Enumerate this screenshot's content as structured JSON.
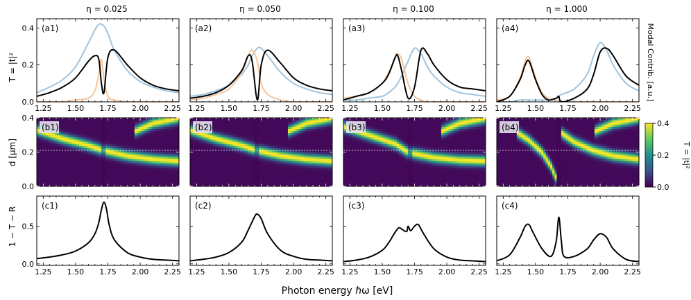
{
  "figure": {
    "xlabel": "Photon energy ℏω [eV]",
    "row_a_ylabel": "T = |t|²",
    "row_a_right_label": "Modal Contrib. [a.u.]",
    "row_b_ylabel": "d [μm]",
    "row_c_ylabel": "1 − T − R",
    "colorbar_label": "T = |t|²",
    "colorbar_ticks": [
      "0.0",
      "0.2",
      "0.4"
    ],
    "eta_titles": [
      "η = 0.025",
      "η = 0.050",
      "η = 0.100",
      "η = 1.000"
    ],
    "colormap": [
      "#440154",
      "#3b528b",
      "#21918c",
      "#5ec962",
      "#fde725"
    ]
  },
  "chart_data": [
    {
      "panel": "(a1)",
      "type": "line",
      "xlim": [
        1.2,
        2.3
      ],
      "ylim": [
        0,
        0.45
      ],
      "xticks": [
        "1.25",
        "1.50",
        "1.75",
        "2.00",
        "2.25"
      ],
      "yticks": [
        "0.0",
        "0.2",
        "0.4"
      ],
      "x": [
        1.2,
        1.3,
        1.4,
        1.5,
        1.6,
        1.65,
        1.68,
        1.7,
        1.72,
        1.75,
        1.8,
        1.9,
        2.0,
        2.1,
        2.2,
        2.3
      ],
      "series": [
        {
          "color": "#9fc4dd",
          "values": [
            0.05,
            0.08,
            0.12,
            0.19,
            0.32,
            0.39,
            0.42,
            0.42,
            0.41,
            0.37,
            0.28,
            0.17,
            0.11,
            0.08,
            0.06,
            0.05
          ]
        },
        {
          "color": "#f7c49a",
          "values": [
            0.0,
            0.0,
            0.0,
            0.01,
            0.02,
            0.06,
            0.15,
            0.23,
            0.12,
            0.03,
            0.01,
            0.0,
            0.0,
            0.0,
            0.0,
            0.0
          ]
        },
        {
          "color": "#000000",
          "values": [
            0.03,
            0.05,
            0.08,
            0.13,
            0.22,
            0.25,
            0.23,
            0.1,
            0.05,
            0.24,
            0.28,
            0.2,
            0.13,
            0.09,
            0.07,
            0.06
          ]
        }
      ]
    },
    {
      "panel": "(a2)",
      "type": "line",
      "xlim": [
        1.2,
        2.3
      ],
      "ylim": [
        0,
        0.45
      ],
      "xticks": [
        "1.25",
        "1.50",
        "1.75",
        "2.00",
        "2.25"
      ],
      "yticks": [],
      "x": [
        1.2,
        1.3,
        1.4,
        1.5,
        1.6,
        1.65,
        1.68,
        1.72,
        1.75,
        1.8,
        1.9,
        2.0,
        2.1,
        2.2,
        2.3
      ],
      "series": [
        {
          "color": "#9fc4dd",
          "values": [
            0.03,
            0.04,
            0.06,
            0.09,
            0.15,
            0.2,
            0.25,
            0.29,
            0.29,
            0.25,
            0.16,
            0.1,
            0.07,
            0.05,
            0.04
          ]
        },
        {
          "color": "#f7c49a",
          "values": [
            0.01,
            0.02,
            0.04,
            0.07,
            0.16,
            0.25,
            0.28,
            0.22,
            0.1,
            0.04,
            0.01,
            0.0,
            0.0,
            0.0,
            0.0
          ]
        },
        {
          "color": "#000000",
          "values": [
            0.02,
            0.03,
            0.05,
            0.09,
            0.17,
            0.25,
            0.22,
            0.01,
            0.2,
            0.28,
            0.21,
            0.13,
            0.09,
            0.07,
            0.06
          ]
        }
      ]
    },
    {
      "panel": "(a3)",
      "type": "line",
      "xlim": [
        1.2,
        2.3
      ],
      "ylim": [
        0,
        0.45
      ],
      "xticks": [
        "1.25",
        "1.50",
        "1.75",
        "2.00",
        "2.25"
      ],
      "yticks": [],
      "x": [
        1.2,
        1.3,
        1.4,
        1.5,
        1.55,
        1.6,
        1.62,
        1.65,
        1.7,
        1.75,
        1.8,
        1.85,
        1.9,
        2.0,
        2.1,
        2.2,
        2.3
      ],
      "series": [
        {
          "color": "#9fc4dd",
          "values": [
            0.01,
            0.01,
            0.02,
            0.03,
            0.05,
            0.08,
            0.1,
            0.14,
            0.22,
            0.29,
            0.26,
            0.19,
            0.14,
            0.08,
            0.05,
            0.04,
            0.03
          ]
        },
        {
          "color": "#f7c49a",
          "values": [
            0.02,
            0.03,
            0.05,
            0.1,
            0.16,
            0.24,
            0.26,
            0.23,
            0.1,
            0.03,
            0.01,
            0.0,
            0.0,
            0.0,
            0.0,
            0.0,
            0.0
          ]
        },
        {
          "color": "#000000",
          "values": [
            0.01,
            0.03,
            0.05,
            0.1,
            0.15,
            0.24,
            0.25,
            0.17,
            0.02,
            0.08,
            0.28,
            0.26,
            0.2,
            0.12,
            0.08,
            0.07,
            0.06
          ]
        }
      ]
    },
    {
      "panel": "(a4)",
      "type": "line",
      "xlim": [
        1.2,
        2.3
      ],
      "ylim": [
        0,
        0.45
      ],
      "xticks": [
        "1.25",
        "1.50",
        "1.75",
        "2.00",
        "2.25"
      ],
      "yticks": [],
      "x": [
        1.2,
        1.3,
        1.38,
        1.42,
        1.45,
        1.5,
        1.55,
        1.6,
        1.66,
        1.68,
        1.7,
        1.8,
        1.9,
        1.95,
        2.0,
        2.05,
        2.1,
        2.2,
        2.3
      ],
      "series": [
        {
          "color": "#9fc4dd",
          "values": [
            0.0,
            0.0,
            0.01,
            0.01,
            0.01,
            0.01,
            0.01,
            0.01,
            0.02,
            0.03,
            0.04,
            0.07,
            0.15,
            0.25,
            0.32,
            0.28,
            0.2,
            0.1,
            0.06
          ]
        },
        {
          "color": "#f7c49a",
          "values": [
            0.01,
            0.03,
            0.13,
            0.22,
            0.24,
            0.13,
            0.05,
            0.02,
            0.01,
            0.0,
            0.0,
            0.0,
            0.0,
            0.0,
            0.0,
            0.0,
            0.0,
            0.0,
            0.0
          ]
        },
        {
          "color": "#000000",
          "values": [
            0.0,
            0.03,
            0.12,
            0.2,
            0.22,
            0.12,
            0.04,
            0.01,
            0.02,
            0.03,
            0.0,
            0.02,
            0.07,
            0.15,
            0.27,
            0.29,
            0.25,
            0.14,
            0.09
          ]
        }
      ]
    },
    {
      "panel": "(b1)",
      "type": "heatmap",
      "xlim": [
        1.2,
        2.3
      ],
      "ylim": [
        0,
        0.4
      ],
      "clim": [
        0,
        0.4
      ],
      "yticks": [
        "0.0",
        "0.2",
        "0.4"
      ],
      "dashed_line_y": 0.21,
      "branches": [
        {
          "x": [
            1.2,
            1.4,
            1.6,
            1.72,
            1.9,
            2.1,
            2.3
          ],
          "d": [
            0.33,
            0.28,
            0.24,
            0.21,
            0.18,
            0.16,
            0.15
          ]
        },
        {
          "x": [
            1.95,
            2.1,
            2.3
          ],
          "d": [
            0.32,
            0.37,
            0.4
          ]
        }
      ],
      "anticrossing_x": 1.72
    },
    {
      "panel": "(b2)",
      "type": "heatmap",
      "xlim": [
        1.2,
        2.3
      ],
      "ylim": [
        0,
        0.4
      ],
      "clim": [
        0,
        0.4
      ],
      "yticks": [],
      "dashed_line_y": 0.21,
      "branches": [
        {
          "x": [
            1.2,
            1.4,
            1.6,
            1.72,
            1.9,
            2.1,
            2.3
          ],
          "d": [
            0.33,
            0.28,
            0.24,
            0.21,
            0.18,
            0.16,
            0.15
          ]
        },
        {
          "x": [
            1.95,
            2.1,
            2.3
          ],
          "d": [
            0.32,
            0.37,
            0.4
          ]
        }
      ],
      "anticrossing_x": 1.72
    },
    {
      "panel": "(b3)",
      "type": "heatmap",
      "xlim": [
        1.2,
        2.3
      ],
      "ylim": [
        0,
        0.4
      ],
      "clim": [
        0,
        0.4
      ],
      "yticks": [],
      "dashed_line_y": 0.21,
      "branches": [
        {
          "x": [
            1.2,
            1.4,
            1.6,
            1.7,
            1.9,
            2.1,
            2.3
          ],
          "d": [
            0.35,
            0.3,
            0.25,
            0.2,
            0.17,
            0.155,
            0.15
          ]
        },
        {
          "x": [
            1.95,
            2.1,
            2.3
          ],
          "d": [
            0.32,
            0.37,
            0.4
          ]
        }
      ],
      "anticrossing_x": 1.72
    },
    {
      "panel": "(b4)",
      "type": "heatmap",
      "xlim": [
        1.2,
        2.3
      ],
      "ylim": [
        0,
        0.4
      ],
      "clim": [
        0,
        0.4
      ],
      "yticks": [],
      "dashed_line_y": 0.21,
      "branches": [
        {
          "x": [
            1.35,
            1.45,
            1.55,
            1.62,
            1.66
          ],
          "d": [
            0.32,
            0.27,
            0.2,
            0.12,
            0.05
          ]
        },
        {
          "x": [
            1.69,
            1.8,
            1.95,
            2.1,
            2.3
          ],
          "d": [
            0.32,
            0.26,
            0.21,
            0.18,
            0.16
          ]
        },
        {
          "x": [
            1.95,
            2.1,
            2.3
          ],
          "d": [
            0.32,
            0.37,
            0.4
          ]
        }
      ],
      "anticrossing_x": 1.68
    },
    {
      "panel": "(c1)",
      "type": "line",
      "xlim": [
        1.2,
        2.3
      ],
      "ylim": [
        -0.02,
        0.9
      ],
      "xticks": [
        "1.25",
        "1.50",
        "1.75",
        "2.00",
        "2.25"
      ],
      "yticks": [
        "0.0",
        "0.5"
      ],
      "x": [
        1.2,
        1.3,
        1.4,
        1.5,
        1.6,
        1.65,
        1.68,
        1.7,
        1.72,
        1.74,
        1.76,
        1.8,
        1.9,
        2.0,
        2.1,
        2.2,
        2.3
      ],
      "series": [
        {
          "color": "#000000",
          "values": [
            0.07,
            0.09,
            0.12,
            0.17,
            0.28,
            0.4,
            0.55,
            0.72,
            0.82,
            0.72,
            0.52,
            0.32,
            0.15,
            0.09,
            0.06,
            0.05,
            0.04
          ]
        }
      ]
    },
    {
      "panel": "(c2)",
      "type": "line",
      "xlim": [
        1.2,
        2.3
      ],
      "ylim": [
        -0.02,
        0.9
      ],
      "xticks": [
        "1.25",
        "1.50",
        "1.75",
        "2.00",
        "2.25"
      ],
      "yticks": [],
      "x": [
        1.2,
        1.3,
        1.4,
        1.5,
        1.6,
        1.65,
        1.7,
        1.72,
        1.75,
        1.8,
        1.9,
        2.0,
        2.1,
        2.2,
        2.3
      ],
      "series": [
        {
          "color": "#000000",
          "values": [
            0.04,
            0.06,
            0.09,
            0.15,
            0.29,
            0.45,
            0.63,
            0.66,
            0.6,
            0.4,
            0.18,
            0.1,
            0.06,
            0.05,
            0.04
          ]
        }
      ]
    },
    {
      "panel": "(c3)",
      "type": "line",
      "xlim": [
        1.2,
        2.3
      ],
      "ylim": [
        -0.02,
        0.9
      ],
      "xticks": [
        "1.25",
        "1.50",
        "1.75",
        "2.00",
        "2.25"
      ],
      "yticks": [],
      "x": [
        1.2,
        1.3,
        1.4,
        1.5,
        1.55,
        1.6,
        1.63,
        1.66,
        1.69,
        1.7,
        1.72,
        1.75,
        1.78,
        1.82,
        1.9,
        2.0,
        2.1,
        2.2,
        2.3
      ],
      "series": [
        {
          "color": "#000000",
          "values": [
            0.03,
            0.05,
            0.09,
            0.18,
            0.28,
            0.42,
            0.48,
            0.45,
            0.43,
            0.5,
            0.44,
            0.5,
            0.52,
            0.4,
            0.2,
            0.09,
            0.05,
            0.04,
            0.03
          ]
        }
      ]
    },
    {
      "panel": "(c4)",
      "type": "line",
      "xlim": [
        1.2,
        2.3
      ],
      "ylim": [
        -0.02,
        0.9
      ],
      "xticks": [
        "1.25",
        "1.50",
        "1.75",
        "2.00",
        "2.25"
      ],
      "yticks": [],
      "x": [
        1.2,
        1.3,
        1.38,
        1.42,
        1.45,
        1.48,
        1.55,
        1.62,
        1.66,
        1.68,
        1.7,
        1.72,
        1.8,
        1.9,
        1.95,
        2.0,
        2.05,
        2.1,
        2.2,
        2.3
      ],
      "series": [
        {
          "color": "#000000",
          "values": [
            0.04,
            0.12,
            0.35,
            0.5,
            0.52,
            0.42,
            0.2,
            0.1,
            0.3,
            0.62,
            0.3,
            0.1,
            0.1,
            0.2,
            0.32,
            0.4,
            0.35,
            0.2,
            0.06,
            0.03
          ]
        }
      ]
    }
  ]
}
